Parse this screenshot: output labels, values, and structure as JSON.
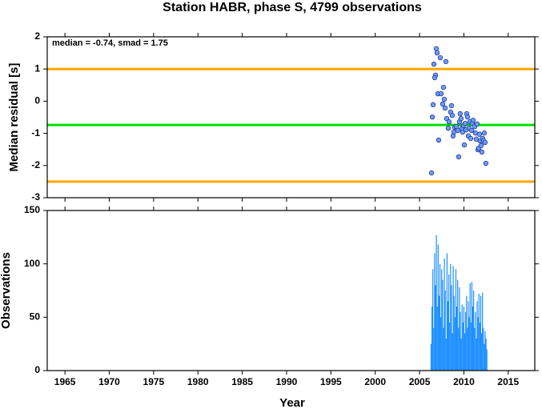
{
  "chart_data": [
    {
      "type": "scatter",
      "title": "Station HABR, phase S, 4799 observations",
      "ylabel": "Median residual [s]",
      "annotation": "median = -0.74, smad = 1.75",
      "x": [
        2006.35,
        2006.53,
        2006.44,
        2006.62,
        2006.8,
        2006.71,
        2006.89,
        2006.98,
        2007.07,
        2007.34,
        2007.16,
        2007.43,
        2007.61,
        2007.7,
        2007.79,
        2007.88,
        2007.97,
        2008.06,
        2008.24,
        2008.33,
        2008.51,
        2008.6,
        2008.69,
        2008.78,
        2008.87,
        2008.96,
        2009.14,
        2009.32,
        2009.41,
        2009.5,
        2009.59,
        2009.68,
        2009.77,
        2009.86,
        2009.95,
        2010.05,
        2010.14,
        2010.23,
        2010.32,
        2010.41,
        2010.5,
        2010.59,
        2010.68,
        2010.77,
        2010.86,
        2010.95,
        2011.04,
        2011.22,
        2011.31,
        2011.4,
        2011.49,
        2011.58,
        2011.67,
        2011.76,
        2011.85,
        2011.94,
        2012.03,
        2012.12,
        2012.21,
        2012.3,
        2012.39,
        2012.48
      ],
      "values": [
        -2.23,
        -0.11,
        -0.49,
        1.15,
        0.81,
        0.73,
        1.63,
        1.5,
        0.23,
        1.35,
        -1.21,
        0.23,
        -0.09,
        0.43,
        0.06,
        -0.21,
        1.23,
        -0.54,
        -0.84,
        -0.64,
        -0.34,
        -0.14,
        -0.44,
        -1.08,
        -0.96,
        -0.81,
        -0.79,
        -0.91,
        -1.73,
        -0.64,
        -0.39,
        -0.54,
        -0.84,
        -0.96,
        -0.76,
        -1.36,
        -0.69,
        -0.89,
        -0.39,
        -0.49,
        -1.08,
        -0.84,
        -0.64,
        -1.16,
        -0.91,
        -0.69,
        -0.59,
        -0.79,
        -0.99,
        -1.18,
        -0.71,
        -1.51,
        -1.46,
        -1.03,
        -1.23,
        -1.38,
        -1.58,
        -1.16,
        -1.23,
        -0.99,
        -1.28,
        -1.93
      ],
      "color": "#6a9cff",
      "xlim": [
        1963,
        2018
      ],
      "xticks": [
        1965,
        1970,
        1975,
        1980,
        1985,
        1990,
        1995,
        2000,
        2005,
        2010,
        2015
      ],
      "ylim": [
        -3,
        2
      ],
      "yticks": [
        -3,
        -2,
        -1,
        0,
        1,
        2
      ],
      "hlines": [
        {
          "value": 1,
          "color": "#ffa500"
        },
        {
          "value": -0.74,
          "color": "#00e000"
        },
        {
          "value": -2.5,
          "color": "#ffa500"
        }
      ]
    },
    {
      "type": "bar",
      "ylabel": "Observations",
      "xlabel": "Year",
      "x": [
        2006.3,
        2006.4,
        2006.5,
        2006.6,
        2006.7,
        2006.8,
        2006.9,
        2007.0,
        2007.1,
        2007.2,
        2007.3,
        2007.4,
        2007.5,
        2007.6,
        2007.7,
        2007.8,
        2007.9,
        2008.0,
        2008.1,
        2008.2,
        2008.3,
        2008.4,
        2008.5,
        2008.6,
        2008.7,
        2008.8,
        2008.9,
        2009.0,
        2009.1,
        2009.2,
        2009.3,
        2009.4,
        2009.5,
        2009.6,
        2009.7,
        2009.8,
        2009.9,
        2010.0,
        2010.1,
        2010.2,
        2010.3,
        2010.4,
        2010.5,
        2010.6,
        2010.7,
        2010.8,
        2010.9,
        2011.0,
        2011.1,
        2011.2,
        2011.3,
        2011.4,
        2011.5,
        2011.6,
        2011.7,
        2011.8,
        2011.9,
        2012.0,
        2012.1,
        2012.2,
        2012.3,
        2012.4,
        2012.5,
        2012.6
      ],
      "values": [
        25,
        60,
        95,
        40,
        110,
        80,
        127,
        60,
        118,
        70,
        100,
        50,
        95,
        85,
        40,
        105,
        75,
        30,
        110,
        65,
        90,
        45,
        100,
        80,
        35,
        98,
        70,
        50,
        95,
        60,
        85,
        40,
        78,
        55,
        30,
        62,
        45,
        60,
        35,
        55,
        70,
        40,
        65,
        50,
        82,
        45,
        83,
        60,
        75,
        40,
        55,
        30,
        65,
        50,
        72,
        45,
        70,
        35,
        73,
        40,
        25,
        37,
        30,
        20
      ],
      "color": "#1e90ff",
      "xlim": [
        1963,
        2018
      ],
      "xticks": [
        1965,
        1970,
        1975,
        1980,
        1985,
        1990,
        1995,
        2000,
        2005,
        2010,
        2015
      ],
      "ylim": [
        0,
        150
      ],
      "yticks": [
        0,
        50,
        100,
        150
      ]
    }
  ]
}
